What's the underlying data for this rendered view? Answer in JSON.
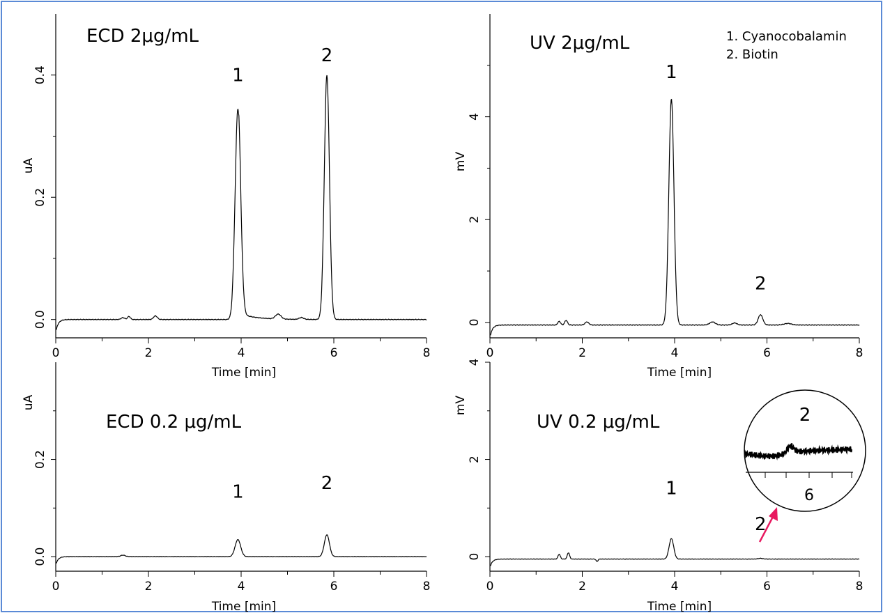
{
  "legend": {
    "items": [
      "1. Cyanocobalamin",
      "2. Biotin"
    ]
  },
  "colors": {
    "frame": "#5b8ad6",
    "trace": "#000000",
    "arrow": "#e8185f"
  },
  "chart_data": [
    {
      "id": "ecd_high",
      "type": "line",
      "title": "ECD 2μg/mL",
      "xlabel": "Time [min]",
      "ylabel": "uA",
      "xlim": [
        0,
        8
      ],
      "ylim": [
        -0.03,
        0.5
      ],
      "xticks": [
        0,
        2,
        4,
        6,
        8
      ],
      "xtick_labels": [
        "0",
        "2",
        "4",
        "6",
        "8"
      ],
      "yticks": [
        0,
        0.2,
        0.4
      ],
      "ytick_labels": [
        "0.0",
        "0.2",
        "0.4"
      ],
      "baseline": 0.0,
      "peaks": [
        {
          "label": "1",
          "t": 3.93,
          "h": 0.345,
          "w": 0.06
        },
        {
          "label": "2",
          "t": 5.85,
          "h": 0.4,
          "w": 0.055
        }
      ],
      "minor_peaks": [
        {
          "t": 1.45,
          "h": 0.003,
          "w": 0.04
        },
        {
          "t": 1.58,
          "h": 0.005,
          "w": 0.03
        },
        {
          "t": 2.15,
          "h": 0.006,
          "w": 0.04
        },
        {
          "t": 4.8,
          "h": 0.008,
          "w": 0.06
        },
        {
          "t": 5.3,
          "h": 0.003,
          "w": 0.05
        }
      ],
      "tail": {
        "t": 3.95,
        "amp": 0.01,
        "decay": 0.35
      }
    },
    {
      "id": "uv_high",
      "type": "line",
      "title": "UV 2μg/mL",
      "xlabel": "Time [min]",
      "ylabel": "mV",
      "xlim": [
        0,
        8
      ],
      "ylim": [
        -0.3,
        6.0
      ],
      "xticks": [
        0,
        2,
        4,
        6,
        8
      ],
      "xtick_labels": [
        "0",
        "2",
        "4",
        "6",
        "8"
      ],
      "yticks": [
        0,
        2,
        4
      ],
      "ytick_labels": [
        "0",
        "2",
        "4"
      ],
      "baseline": -0.05,
      "peaks": [
        {
          "label": "1",
          "t": 3.93,
          "h": 4.4,
          "w": 0.055
        },
        {
          "label": "2",
          "t": 5.86,
          "h": 0.2,
          "w": 0.05
        }
      ],
      "minor_peaks": [
        {
          "t": 1.5,
          "h": 0.07,
          "w": 0.03
        },
        {
          "t": 1.65,
          "h": 0.09,
          "w": 0.03
        },
        {
          "t": 2.1,
          "h": 0.06,
          "w": 0.04
        },
        {
          "t": 4.82,
          "h": 0.06,
          "w": 0.06
        },
        {
          "t": 5.3,
          "h": 0.04,
          "w": 0.05
        },
        {
          "t": 6.45,
          "h": 0.03,
          "w": 0.08
        }
      ]
    },
    {
      "id": "ecd_low",
      "type": "line",
      "title": "ECD 0.2 μg/mL",
      "xlabel": "Time [min]",
      "ylabel": "uA",
      "xlim": [
        0,
        8
      ],
      "ylim": [
        -0.03,
        0.4
      ],
      "xticks": [
        0,
        2,
        4,
        6,
        8
      ],
      "xtick_labels": [
        "0",
        "2",
        "4",
        "6",
        "8"
      ],
      "yticks": [
        0,
        0.2
      ],
      "ytick_labels": [
        "0.0",
        "0.2"
      ],
      "baseline": 0.0,
      "peaks": [
        {
          "label": "1",
          "t": 3.93,
          "h": 0.035,
          "w": 0.06
        },
        {
          "label": "2",
          "t": 5.85,
          "h": 0.045,
          "w": 0.055
        }
      ],
      "minor_peaks": [
        {
          "t": 1.45,
          "h": 0.003,
          "w": 0.05
        }
      ]
    },
    {
      "id": "uv_low",
      "type": "line",
      "title": "UV 0.2 μg/mL",
      "xlabel": "Time [min]",
      "ylabel": "mV",
      "xlim": [
        0,
        8
      ],
      "ylim": [
        -0.3,
        4.0
      ],
      "xticks": [
        0,
        2,
        4,
        6,
        8
      ],
      "xtick_labels": [
        "0",
        "2",
        "4",
        "6",
        "8"
      ],
      "yticks": [
        0,
        2,
        4
      ],
      "ytick_labels": [
        "0",
        "2",
        "4"
      ],
      "baseline": -0.05,
      "peaks": [
        {
          "label": "1",
          "t": 3.93,
          "h": 0.42,
          "w": 0.05
        },
        {
          "label": "2",
          "t": 5.86,
          "h": 0.015,
          "w": 0.05
        }
      ],
      "minor_peaks": [
        {
          "t": 1.5,
          "h": 0.1,
          "w": 0.025
        },
        {
          "t": 1.7,
          "h": 0.13,
          "w": 0.025
        },
        {
          "t": 2.32,
          "h": -0.05,
          "w": 0.02
        }
      ],
      "inset": {
        "peak_label": "2",
        "tick_label": "6",
        "xlim": [
          5.0,
          7.0
        ]
      }
    }
  ]
}
